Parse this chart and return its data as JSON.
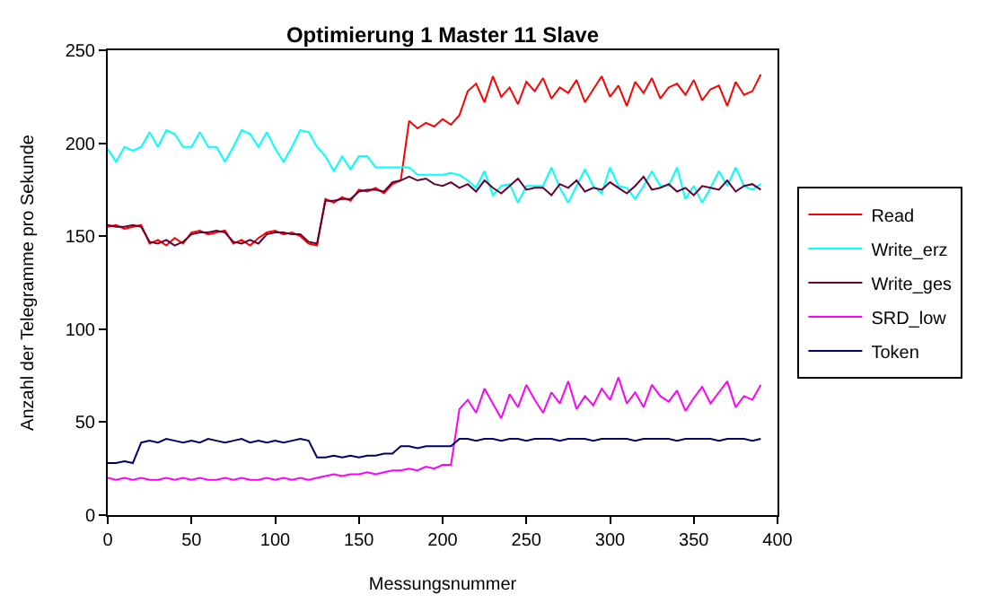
{
  "chart_data": {
    "type": "line",
    "title": "Optimierung 1 Master 11 Slave",
    "xlabel": "Messungsnummer",
    "ylabel": "Anzahl der Telegramme pro Sekunde",
    "x": [
      0,
      5,
      10,
      15,
      20,
      25,
      30,
      35,
      40,
      45,
      50,
      55,
      60,
      65,
      70,
      75,
      80,
      85,
      90,
      95,
      100,
      105,
      110,
      115,
      120,
      125,
      130,
      135,
      140,
      145,
      150,
      155,
      160,
      165,
      170,
      175,
      180,
      185,
      190,
      195,
      200,
      205,
      210,
      215,
      220,
      225,
      230,
      235,
      240,
      245,
      250,
      255,
      260,
      265,
      270,
      275,
      280,
      285,
      290,
      295,
      300,
      305,
      310,
      315,
      320,
      325,
      330,
      335,
      340,
      345,
      350,
      355,
      360,
      365,
      370,
      375,
      380,
      385,
      390
    ],
    "series": [
      {
        "name": "Read",
        "color": "#ff0000",
        "values": [
          155,
          156,
          154,
          155,
          156,
          146,
          148,
          145,
          149,
          146,
          152,
          153,
          151,
          152,
          153,
          146,
          148,
          145,
          149,
          152,
          153,
          151,
          152,
          150,
          146,
          145,
          170,
          168,
          171,
          169,
          175,
          174,
          176,
          173,
          178,
          180,
          212,
          208,
          211,
          209,
          213,
          210,
          215,
          228,
          232,
          222,
          236,
          225,
          230,
          221,
          233,
          228,
          235,
          224,
          230,
          227,
          234,
          222,
          229,
          236,
          225,
          231,
          220,
          233,
          227,
          235,
          224,
          230,
          232,
          226,
          234,
          223,
          229,
          231,
          220,
          233,
          226,
          228,
          237
        ]
      },
      {
        "name": "Write_erz",
        "color": "#00ffff",
        "values": [
          197,
          190,
          198,
          196,
          198,
          206,
          198,
          207,
          205,
          198,
          198,
          206,
          198,
          198,
          190,
          198,
          207,
          205,
          198,
          206,
          197,
          190,
          198,
          207,
          206,
          198,
          193,
          185,
          193,
          186,
          193,
          193,
          187,
          187,
          187,
          187,
          187,
          183,
          183,
          183,
          183,
          184,
          183,
          180,
          176,
          185,
          172,
          177,
          178,
          168,
          177,
          177,
          177,
          187,
          176,
          168,
          177,
          186,
          177,
          173,
          187,
          177,
          176,
          170,
          177,
          185,
          177,
          177,
          187,
          170,
          177,
          168,
          176,
          185,
          177,
          187,
          177,
          175,
          178
        ]
      },
      {
        "name": "Write_ges",
        "color": "#660033",
        "values": [
          156,
          155,
          155,
          156,
          155,
          147,
          146,
          148,
          145,
          147,
          151,
          152,
          152,
          153,
          152,
          147,
          146,
          148,
          146,
          151,
          152,
          152,
          151,
          151,
          147,
          146,
          169,
          169,
          170,
          170,
          174,
          175,
          175,
          174,
          179,
          180,
          182,
          180,
          181,
          178,
          177,
          179,
          176,
          178,
          174,
          180,
          176,
          173,
          177,
          181,
          175,
          176,
          176,
          172,
          178,
          176,
          180,
          174,
          176,
          175,
          179,
          176,
          173,
          177,
          182,
          175,
          176,
          178,
          174,
          176,
          172,
          177,
          176,
          175,
          180,
          174,
          177,
          178,
          175
        ]
      },
      {
        "name": "SRD_low",
        "color": "#ff00ff",
        "values": [
          20,
          19,
          20,
          19,
          20,
          19,
          19,
          20,
          19,
          20,
          19,
          20,
          19,
          19,
          20,
          19,
          20,
          19,
          19,
          20,
          19,
          20,
          19,
          20,
          19,
          20,
          21,
          22,
          21,
          22,
          22,
          23,
          22,
          23,
          24,
          24,
          25,
          24,
          26,
          25,
          27,
          27,
          57,
          62,
          55,
          68,
          60,
          52,
          65,
          58,
          70,
          62,
          55,
          66,
          60,
          72,
          57,
          64,
          59,
          68,
          62,
          74,
          60,
          66,
          58,
          70,
          64,
          61,
          67,
          56,
          63,
          69,
          60,
          66,
          72,
          58,
          64,
          62,
          70
        ]
      },
      {
        "name": "Token",
        "color": "#000066",
        "values": [
          28,
          28,
          29,
          28,
          39,
          40,
          39,
          41,
          40,
          39,
          40,
          39,
          41,
          40,
          39,
          40,
          41,
          39,
          40,
          39,
          40,
          39,
          40,
          41,
          40,
          31,
          31,
          32,
          31,
          32,
          31,
          32,
          32,
          33,
          33,
          37,
          37,
          36,
          37,
          37,
          37,
          37,
          41,
          41,
          40,
          41,
          41,
          40,
          41,
          41,
          40,
          41,
          41,
          41,
          40,
          41,
          41,
          41,
          40,
          41,
          41,
          41,
          41,
          40,
          41,
          41,
          41,
          41,
          40,
          41,
          41,
          41,
          41,
          40,
          41,
          41,
          41,
          40,
          41
        ]
      }
    ],
    "xlim": [
      0,
      400
    ],
    "xticks": [
      0,
      50,
      100,
      150,
      200,
      250,
      300,
      350,
      400
    ],
    "ylim": [
      0,
      250
    ],
    "yticks": [
      0,
      50,
      100,
      150,
      200,
      250
    ],
    "grid": false,
    "legend": "right",
    "marker": "none",
    "line_style": "solid"
  }
}
